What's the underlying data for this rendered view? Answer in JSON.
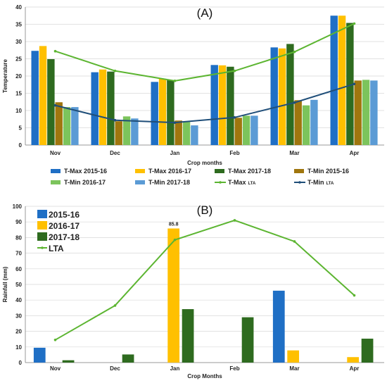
{
  "chart_data": [
    {
      "type": "bar",
      "panel_label": "(A)",
      "xlabel": "Crop months",
      "ylabel": "Temperature",
      "ylim": [
        0,
        40
      ],
      "yticks": [
        0,
        5,
        10,
        15,
        20,
        25,
        30,
        35,
        40
      ],
      "grid": true,
      "legend_position": "bottom",
      "categories": [
        "Nov",
        "Dec",
        "Jan",
        "Feb",
        "Mar",
        "Apr"
      ],
      "series": [
        {
          "name": "T-Max 2015-16",
          "color": "#1f6fc5",
          "values": [
            27.3,
            21.1,
            18.3,
            23.2,
            28.3,
            37.5
          ]
        },
        {
          "name": "T-Max 2016-17",
          "color": "#ffc000",
          "values": [
            28.7,
            21.9,
            19.2,
            23.1,
            28.0,
            37.5
          ]
        },
        {
          "name": "T-Max 2017-18",
          "color": "#2e6b1f",
          "values": [
            24.9,
            21.3,
            18.8,
            22.7,
            29.3,
            35.4
          ]
        },
        {
          "name": "T-Min 2015-16",
          "color": "#a0760e",
          "values": [
            12.4,
            6.9,
            7.1,
            7.9,
            13.0,
            18.7
          ]
        },
        {
          "name": "T-Min 2016-17",
          "color": "#7cc45c",
          "values": [
            11.0,
            8.3,
            6.7,
            8.5,
            11.5,
            18.9
          ]
        },
        {
          "name": "T-Min 2017-18",
          "color": "#5b9bd5",
          "values": [
            11.0,
            7.7,
            5.7,
            8.5,
            13.1,
            18.7
          ]
        }
      ],
      "lines": [
        {
          "name": "T-Max",
          "subscript": "LTA",
          "color": "#5cb531",
          "values": [
            27.2,
            21.5,
            18.6,
            21.5,
            27.0,
            35.2
          ]
        },
        {
          "name": "T-Min",
          "subscript": "LTA",
          "color": "#1f4e79",
          "values": [
            11.5,
            7.2,
            6.5,
            8.0,
            12.3,
            17.7
          ]
        }
      ]
    },
    {
      "type": "bar",
      "panel_label": "(B)",
      "xlabel": "Crop Months",
      "ylabel": "Rainfall (mm)",
      "ylim": [
        0,
        100
      ],
      "yticks": [
        0,
        10,
        20,
        30,
        40,
        50,
        60,
        70,
        80,
        90,
        100
      ],
      "grid": true,
      "legend_position": "top-left",
      "categories": [
        "Nov",
        "Dec",
        "Jan",
        "Feb",
        "Mar",
        "Apr"
      ],
      "series": [
        {
          "name": "2015-16",
          "color": "#1f6fc5",
          "values": [
            9.5,
            0,
            0,
            0,
            46.0,
            0
          ]
        },
        {
          "name": "2016-17",
          "color": "#ffc000",
          "values": [
            0,
            0,
            85.8,
            0,
            7.8,
            3.5
          ]
        },
        {
          "name": "2017-18",
          "color": "#2e6b1f",
          "values": [
            1.5,
            5.2,
            34.2,
            29.0,
            0,
            15.3
          ]
        }
      ],
      "lines": [
        {
          "name": "LTA",
          "color": "#5cb531",
          "values": [
            14.5,
            36.5,
            78.5,
            91.0,
            77.5,
            43.0
          ]
        }
      ],
      "annotations": [
        {
          "category": "Jan",
          "series": "2016-17",
          "text": "85.8"
        }
      ]
    }
  ]
}
